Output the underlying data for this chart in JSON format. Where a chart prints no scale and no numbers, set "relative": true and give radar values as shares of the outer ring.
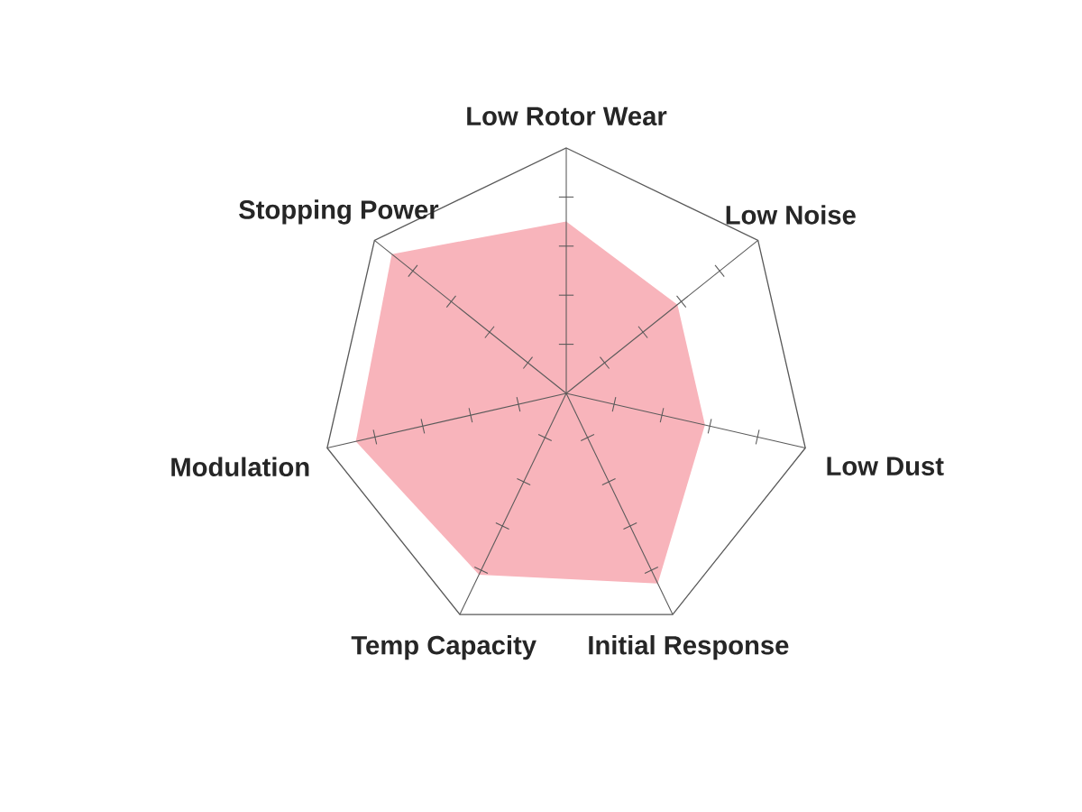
{
  "chart_data": {
    "type": "radar",
    "relative": true,
    "categories": [
      "Low Rotor Wear",
      "Low Noise",
      "Low Dust",
      "Initial Response",
      "Temp Capacity",
      "Modulation",
      "Stopping Power"
    ],
    "series": [
      {
        "color": "#f8b4bb",
        "values": [
          0.7,
          0.58,
          0.58,
          0.86,
          0.82,
          0.88,
          0.91
        ]
      }
    ]
  }
}
